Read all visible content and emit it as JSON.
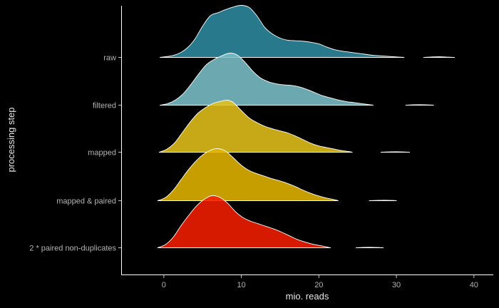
{
  "chart_data": {
    "type": "area",
    "subtype": "ridgeline",
    "xlabel": "mio. reads",
    "ylabel": "processing step",
    "xlim": [
      -5.5,
      42.5
    ],
    "x_ticks": [
      0,
      10,
      20,
      30,
      40
    ],
    "x_tick_labels": [
      "0",
      "10",
      "20",
      "30",
      "40"
    ],
    "categories": [
      "raw",
      "filtered",
      "mapped",
      "mapped & paired",
      "2 * paired non-duplicates"
    ],
    "grid": false,
    "legend": "none",
    "series": [
      {
        "category": "raw",
        "color": "#2f8aa0",
        "points": [
          [
            -0.5,
            0
          ],
          [
            1,
            0.03
          ],
          [
            2,
            0.08
          ],
          [
            3,
            0.18
          ],
          [
            4,
            0.35
          ],
          [
            5,
            0.6
          ],
          [
            6,
            0.8
          ],
          [
            7,
            0.86
          ],
          [
            8,
            0.92
          ],
          [
            9,
            0.97
          ],
          [
            10,
            1.0
          ],
          [
            11,
            0.96
          ],
          [
            12,
            0.8
          ],
          [
            13,
            0.58
          ],
          [
            14,
            0.45
          ],
          [
            15,
            0.37
          ],
          [
            16,
            0.33
          ],
          [
            17,
            0.32
          ],
          [
            18,
            0.31
          ],
          [
            19,
            0.29
          ],
          [
            20,
            0.26
          ],
          [
            21,
            0.2
          ],
          [
            22,
            0.15
          ],
          [
            23,
            0.12
          ],
          [
            24,
            0.1
          ],
          [
            25,
            0.08
          ],
          [
            26,
            0.06
          ],
          [
            27,
            0.04
          ],
          [
            28,
            0.03
          ],
          [
            29,
            0.02
          ],
          [
            30,
            0.01
          ],
          [
            31,
            0
          ]
        ],
        "extra_segment": [
          [
            33.5,
            0
          ],
          [
            34.5,
            0.008
          ],
          [
            35.5,
            0.012
          ],
          [
            36.5,
            0.006
          ],
          [
            37.5,
            0
          ]
        ]
      },
      {
        "category": "filtered",
        "color": "#7bbfc8",
        "points": [
          [
            -0.5,
            0
          ],
          [
            0.5,
            0.03
          ],
          [
            1.5,
            0.1
          ],
          [
            2.5,
            0.22
          ],
          [
            3.5,
            0.4
          ],
          [
            4.5,
            0.6
          ],
          [
            5.5,
            0.78
          ],
          [
            6.5,
            0.88
          ],
          [
            7.5,
            0.95
          ],
          [
            8.5,
            1.0
          ],
          [
            9.5,
            0.96
          ],
          [
            10.5,
            0.82
          ],
          [
            11.5,
            0.65
          ],
          [
            12.5,
            0.52
          ],
          [
            13.5,
            0.45
          ],
          [
            14.5,
            0.41
          ],
          [
            15.5,
            0.39
          ],
          [
            16.5,
            0.38
          ],
          [
            17.5,
            0.35
          ],
          [
            18.5,
            0.3
          ],
          [
            19.5,
            0.24
          ],
          [
            20.5,
            0.18
          ],
          [
            21.5,
            0.14
          ],
          [
            22.5,
            0.1
          ],
          [
            23.5,
            0.07
          ],
          [
            24.5,
            0.05
          ],
          [
            25.5,
            0.03
          ],
          [
            26.5,
            0.01
          ],
          [
            27,
            0
          ]
        ],
        "extra_segment": [
          [
            31.2,
            0
          ],
          [
            32,
            0.006
          ],
          [
            33,
            0.01
          ],
          [
            34,
            0.005
          ],
          [
            34.8,
            0
          ]
        ]
      },
      {
        "category": "mapped",
        "color": "#e3c01a",
        "points": [
          [
            -0.6,
            0
          ],
          [
            0.4,
            0.06
          ],
          [
            1.4,
            0.18
          ],
          [
            2.4,
            0.38
          ],
          [
            3.4,
            0.58
          ],
          [
            4.4,
            0.75
          ],
          [
            5.4,
            0.86
          ],
          [
            6.4,
            0.94
          ],
          [
            7.4,
            0.98
          ],
          [
            8.2,
            1.0
          ],
          [
            9,
            0.95
          ],
          [
            10,
            0.8
          ],
          [
            11,
            0.66
          ],
          [
            12,
            0.57
          ],
          [
            13,
            0.5
          ],
          [
            14,
            0.45
          ],
          [
            15,
            0.41
          ],
          [
            16,
            0.37
          ],
          [
            17,
            0.31
          ],
          [
            18,
            0.24
          ],
          [
            19,
            0.17
          ],
          [
            20,
            0.12
          ],
          [
            21,
            0.09
          ],
          [
            22,
            0.06
          ],
          [
            23,
            0.03
          ],
          [
            24,
            0.01
          ],
          [
            24.3,
            0
          ]
        ],
        "extra_segment": [
          [
            28,
            0
          ],
          [
            29,
            0.006
          ],
          [
            30,
            0.01
          ],
          [
            31,
            0.005
          ],
          [
            31.7,
            0
          ]
        ]
      },
      {
        "category": "mapped & paired",
        "color": "#e3b400",
        "points": [
          [
            -0.8,
            0
          ],
          [
            0.2,
            0.06
          ],
          [
            1.2,
            0.2
          ],
          [
            2.2,
            0.4
          ],
          [
            3.2,
            0.6
          ],
          [
            4.2,
            0.77
          ],
          [
            5.2,
            0.9
          ],
          [
            6.2,
            0.98
          ],
          [
            7,
            1.0
          ],
          [
            8,
            0.95
          ],
          [
            9,
            0.82
          ],
          [
            10,
            0.68
          ],
          [
            11,
            0.58
          ],
          [
            12,
            0.52
          ],
          [
            13,
            0.47
          ],
          [
            14,
            0.42
          ],
          [
            15,
            0.38
          ],
          [
            16,
            0.33
          ],
          [
            17,
            0.27
          ],
          [
            18,
            0.2
          ],
          [
            19,
            0.14
          ],
          [
            20,
            0.09
          ],
          [
            21,
            0.05
          ],
          [
            22,
            0.02
          ],
          [
            22.5,
            0
          ]
        ],
        "extra_segment": [
          [
            26.5,
            0
          ],
          [
            27.5,
            0.006
          ],
          [
            28.5,
            0.01
          ],
          [
            29.5,
            0.005
          ],
          [
            30,
            0
          ]
        ]
      },
      {
        "category": "2 * paired non-duplicates",
        "color": "#f21e00",
        "points": [
          [
            -0.8,
            0
          ],
          [
            0.2,
            0.06
          ],
          [
            1.2,
            0.2
          ],
          [
            2.2,
            0.42
          ],
          [
            3.2,
            0.62
          ],
          [
            4.2,
            0.8
          ],
          [
            5.2,
            0.93
          ],
          [
            6.2,
            1.0
          ],
          [
            7.2,
            0.97
          ],
          [
            8.2,
            0.86
          ],
          [
            9.2,
            0.7
          ],
          [
            10.2,
            0.58
          ],
          [
            11.2,
            0.51
          ],
          [
            12.2,
            0.46
          ],
          [
            13.2,
            0.41
          ],
          [
            14.2,
            0.36
          ],
          [
            15.2,
            0.3
          ],
          [
            16.2,
            0.23
          ],
          [
            17.2,
            0.16
          ],
          [
            18.2,
            0.11
          ],
          [
            19.2,
            0.07
          ],
          [
            20.2,
            0.04
          ],
          [
            21.2,
            0.01
          ],
          [
            21.5,
            0
          ]
        ],
        "extra_segment": [
          [
            24.8,
            0
          ],
          [
            25.6,
            0.006
          ],
          [
            26.6,
            0.01
          ],
          [
            27.6,
            0.005
          ],
          [
            28.3,
            0
          ]
        ]
      }
    ]
  }
}
